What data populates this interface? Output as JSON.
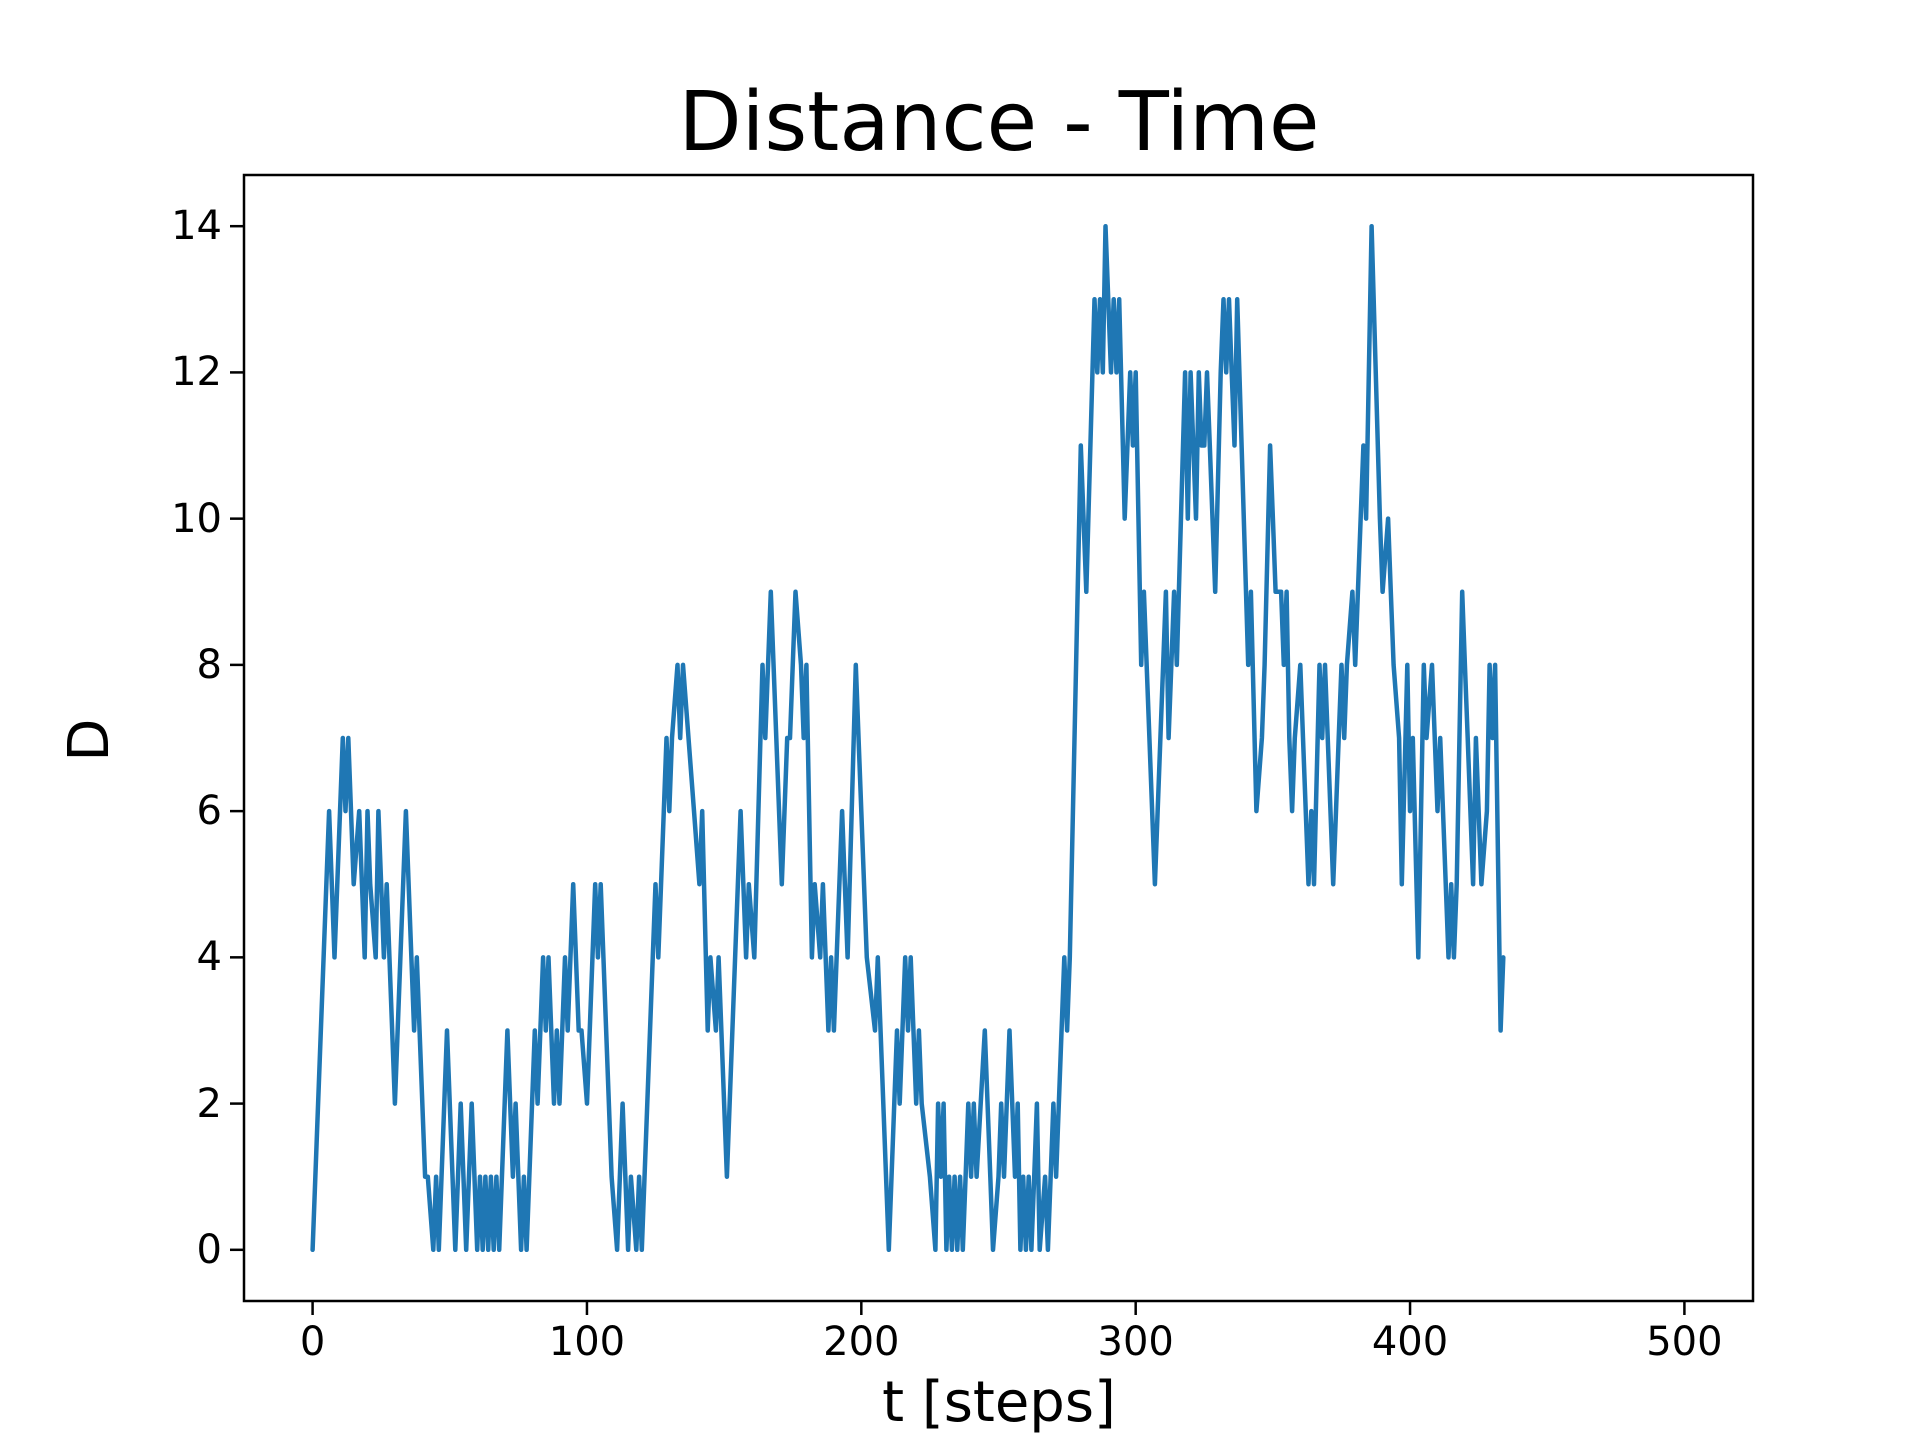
{
  "chart_data": {
    "type": "line",
    "title": "Distance - Time",
    "xlabel": "t [steps]",
    "ylabel": "D",
    "xlim": [
      -25,
      525
    ],
    "ylim": [
      -0.7,
      14.7
    ],
    "xticks": [
      0,
      100,
      200,
      300,
      400,
      500
    ],
    "yticks": [
      0,
      2,
      4,
      6,
      8,
      10,
      12,
      14
    ],
    "grid": false,
    "legend": null,
    "series": [
      {
        "name": "D",
        "color": "#1f77b4",
        "points": [
          [
            0,
            0
          ],
          [
            6,
            6
          ],
          [
            8,
            4
          ],
          [
            11,
            7
          ],
          [
            12,
            6
          ],
          [
            13,
            7
          ],
          [
            15,
            5
          ],
          [
            17,
            6
          ],
          [
            19,
            4
          ],
          [
            20,
            6
          ],
          [
            21,
            5
          ],
          [
            23,
            4
          ],
          [
            24,
            6
          ],
          [
            26,
            4
          ],
          [
            27,
            5
          ],
          [
            30,
            2
          ],
          [
            34,
            6
          ],
          [
            37,
            3
          ],
          [
            38,
            4
          ],
          [
            41,
            1
          ],
          [
            42,
            1
          ],
          [
            44,
            0
          ],
          [
            45,
            1
          ],
          [
            46,
            0
          ],
          [
            49,
            3
          ],
          [
            52,
            0
          ],
          [
            54,
            2
          ],
          [
            56,
            0
          ],
          [
            58,
            2
          ],
          [
            60,
            0
          ],
          [
            61,
            1
          ],
          [
            62,
            0
          ],
          [
            63,
            1
          ],
          [
            64,
            0
          ],
          [
            65,
            1
          ],
          [
            66,
            0
          ],
          [
            67,
            1
          ],
          [
            68,
            0
          ],
          [
            71,
            3
          ],
          [
            73,
            1
          ],
          [
            74,
            2
          ],
          [
            76,
            0
          ],
          [
            77,
            1
          ],
          [
            78,
            0
          ],
          [
            81,
            3
          ],
          [
            82,
            2
          ],
          [
            84,
            4
          ],
          [
            85,
            3
          ],
          [
            86,
            4
          ],
          [
            88,
            2
          ],
          [
            89,
            3
          ],
          [
            90,
            2
          ],
          [
            92,
            4
          ],
          [
            93,
            3
          ],
          [
            95,
            5
          ],
          [
            97,
            3
          ],
          [
            98,
            3
          ],
          [
            100,
            2
          ],
          [
            103,
            5
          ],
          [
            104,
            4
          ],
          [
            105,
            5
          ],
          [
            109,
            1
          ],
          [
            111,
            0
          ],
          [
            113,
            2
          ],
          [
            115,
            0
          ],
          [
            116,
            1
          ],
          [
            118,
            0
          ],
          [
            119,
            1
          ],
          [
            120,
            0
          ],
          [
            125,
            5
          ],
          [
            126,
            4
          ],
          [
            128,
            6
          ],
          [
            129,
            7
          ],
          [
            130,
            6
          ],
          [
            131,
            7
          ],
          [
            133,
            8
          ],
          [
            134,
            7
          ],
          [
            135,
            8
          ],
          [
            137,
            7
          ],
          [
            139,
            6
          ],
          [
            141,
            5
          ],
          [
            142,
            6
          ],
          [
            144,
            3
          ],
          [
            145,
            4
          ],
          [
            147,
            3
          ],
          [
            148,
            4
          ],
          [
            151,
            1
          ],
          [
            156,
            6
          ],
          [
            158,
            4
          ],
          [
            159,
            5
          ],
          [
            161,
            4
          ],
          [
            164,
            8
          ],
          [
            165,
            7
          ],
          [
            167,
            9
          ],
          [
            169,
            7
          ],
          [
            171,
            5
          ],
          [
            173,
            7
          ],
          [
            174,
            7
          ],
          [
            176,
            9
          ],
          [
            178,
            8
          ],
          [
            179,
            7
          ],
          [
            180,
            8
          ],
          [
            182,
            4
          ],
          [
            183,
            5
          ],
          [
            185,
            4
          ],
          [
            186,
            5
          ],
          [
            188,
            3
          ],
          [
            189,
            4
          ],
          [
            190,
            3
          ],
          [
            193,
            6
          ],
          [
            195,
            4
          ],
          [
            198,
            8
          ],
          [
            202,
            4
          ],
          [
            205,
            3
          ],
          [
            206,
            4
          ],
          [
            210,
            0
          ],
          [
            213,
            3
          ],
          [
            214,
            2
          ],
          [
            216,
            4
          ],
          [
            217,
            3
          ],
          [
            218,
            4
          ],
          [
            220,
            2
          ],
          [
            221,
            3
          ],
          [
            222,
            2
          ],
          [
            225,
            1
          ],
          [
            227,
            0
          ],
          [
            228,
            2
          ],
          [
            229,
            1
          ],
          [
            230,
            2
          ],
          [
            231,
            0
          ],
          [
            232,
            1
          ],
          [
            233,
            0
          ],
          [
            234,
            1
          ],
          [
            235,
            0
          ],
          [
            236,
            1
          ],
          [
            237,
            0
          ],
          [
            238,
            1
          ],
          [
            239,
            2
          ],
          [
            240,
            1
          ],
          [
            241,
            2
          ],
          [
            242,
            1
          ],
          [
            245,
            3
          ],
          [
            247,
            1
          ],
          [
            248,
            0
          ],
          [
            250,
            1
          ],
          [
            251,
            2
          ],
          [
            252,
            1
          ],
          [
            254,
            3
          ],
          [
            256,
            1
          ],
          [
            257,
            2
          ],
          [
            258,
            0
          ],
          [
            259,
            1
          ],
          [
            260,
            0
          ],
          [
            261,
            1
          ],
          [
            262,
            0
          ],
          [
            263,
            1
          ],
          [
            264,
            2
          ],
          [
            265,
            0
          ],
          [
            267,
            1
          ],
          [
            268,
            0
          ],
          [
            270,
            2
          ],
          [
            271,
            1
          ],
          [
            274,
            4
          ],
          [
            275,
            3
          ],
          [
            276,
            4
          ],
          [
            280,
            11
          ],
          [
            282,
            9
          ],
          [
            285,
            13
          ],
          [
            286,
            12
          ],
          [
            287,
            13
          ],
          [
            288,
            12
          ],
          [
            289,
            14
          ],
          [
            291,
            12
          ],
          [
            292,
            13
          ],
          [
            293,
            12
          ],
          [
            294,
            13
          ],
          [
            296,
            10
          ],
          [
            298,
            12
          ],
          [
            299,
            11
          ],
          [
            300,
            12
          ],
          [
            302,
            8
          ],
          [
            303,
            9
          ],
          [
            307,
            5
          ],
          [
            311,
            9
          ],
          [
            312,
            7
          ],
          [
            314,
            9
          ],
          [
            315,
            8
          ],
          [
            318,
            12
          ],
          [
            319,
            10
          ],
          [
            320,
            12
          ],
          [
            321,
            11
          ],
          [
            322,
            10
          ],
          [
            323,
            12
          ],
          [
            324,
            11
          ],
          [
            325,
            11
          ],
          [
            326,
            12
          ],
          [
            327,
            11
          ],
          [
            329,
            9
          ],
          [
            331,
            12
          ],
          [
            332,
            13
          ],
          [
            333,
            12
          ],
          [
            334,
            13
          ],
          [
            335,
            12
          ],
          [
            336,
            11
          ],
          [
            337,
            13
          ],
          [
            341,
            8
          ],
          [
            342,
            9
          ],
          [
            344,
            6
          ],
          [
            346,
            7
          ],
          [
            347,
            8
          ],
          [
            349,
            11
          ],
          [
            350,
            10
          ],
          [
            351,
            9
          ],
          [
            353,
            9
          ],
          [
            354,
            8
          ],
          [
            355,
            9
          ],
          [
            356,
            7
          ],
          [
            357,
            6
          ],
          [
            358,
            7
          ],
          [
            360,
            8
          ],
          [
            361,
            7
          ],
          [
            363,
            5
          ],
          [
            364,
            6
          ],
          [
            365,
            5
          ],
          [
            367,
            8
          ],
          [
            368,
            7
          ],
          [
            369,
            8
          ],
          [
            372,
            5
          ],
          [
            373,
            6
          ],
          [
            374,
            7
          ],
          [
            375,
            8
          ],
          [
            376,
            7
          ],
          [
            377,
            8
          ],
          [
            379,
            9
          ],
          [
            380,
            8
          ],
          [
            381,
            9
          ],
          [
            383,
            11
          ],
          [
            384,
            10
          ],
          [
            386,
            14
          ],
          [
            389,
            10
          ],
          [
            390,
            9
          ],
          [
            392,
            10
          ],
          [
            393,
            9
          ],
          [
            394,
            8
          ],
          [
            396,
            7
          ],
          [
            397,
            5
          ],
          [
            399,
            8
          ],
          [
            400,
            6
          ],
          [
            401,
            7
          ],
          [
            403,
            4
          ],
          [
            405,
            8
          ],
          [
            406,
            7
          ],
          [
            408,
            8
          ],
          [
            410,
            6
          ],
          [
            411,
            7
          ],
          [
            412,
            6
          ],
          [
            414,
            4
          ],
          [
            415,
            5
          ],
          [
            416,
            4
          ],
          [
            417,
            5
          ],
          [
            419,
            9
          ],
          [
            420,
            8
          ],
          [
            421,
            7
          ],
          [
            423,
            5
          ],
          [
            424,
            7
          ],
          [
            426,
            5
          ],
          [
            428,
            6
          ],
          [
            429,
            8
          ],
          [
            430,
            7
          ],
          [
            431,
            8
          ],
          [
            433,
            3
          ],
          [
            434,
            4
          ]
        ]
      }
    ]
  },
  "figure": {
    "title": "Distance - Time",
    "xlabel": "t [steps]",
    "ylabel": "D",
    "xtick_labels": [
      "0",
      "100",
      "200",
      "300",
      "400",
      "500"
    ],
    "ytick_labels": [
      "0",
      "2",
      "4",
      "6",
      "8",
      "10",
      "12",
      "14"
    ],
    "line_color": "#1f77b4"
  }
}
